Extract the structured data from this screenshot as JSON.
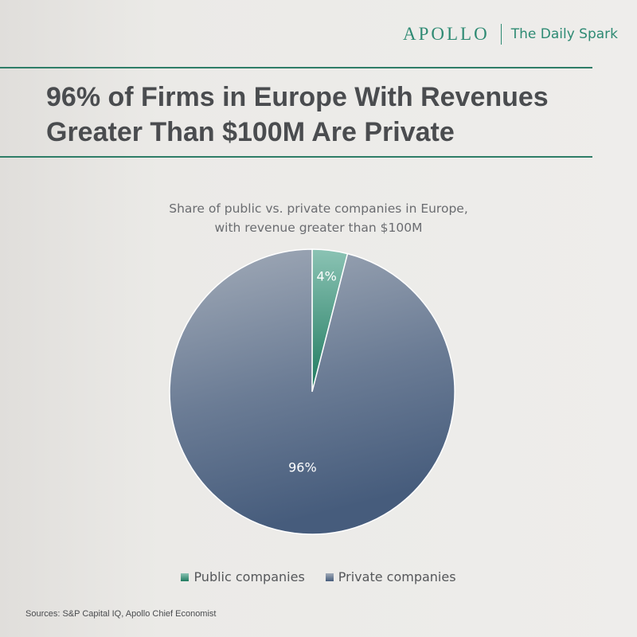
{
  "brand": {
    "name": "APOLLO",
    "product": "The Daily Spark",
    "color": "#2e8a73"
  },
  "headline": {
    "line1": "96% of Firms in Europe With Revenues",
    "line2": "Greater Than $100M Are Private"
  },
  "source": "Sources: S&P Capital IQ, Apollo Chief Economist",
  "chart_data": {
    "type": "pie",
    "title": [
      "Share of public vs. private companies in Europe,",
      "with revenue greater than $100M"
    ],
    "slices": [
      {
        "name": "Public companies",
        "value": 4,
        "label": "4%",
        "color": "#2a8a70"
      },
      {
        "name": "Private companies",
        "value": 96,
        "label": "96%",
        "color": "#5a6f8c"
      }
    ],
    "legend": "bottom"
  }
}
